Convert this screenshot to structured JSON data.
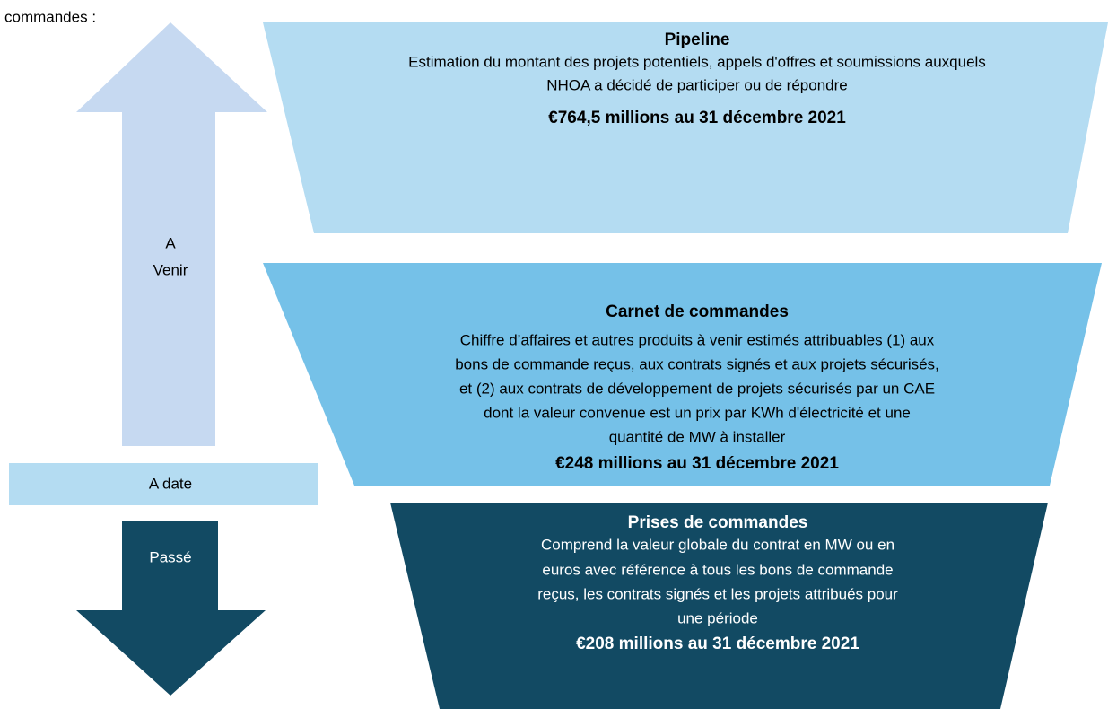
{
  "intro": "commandes :",
  "arrow_up": {
    "lines": [
      "A",
      "Venir"
    ]
  },
  "today": "A date",
  "arrow_down": "Passé",
  "sections": [
    {
      "title": "Pipeline",
      "lines": [
        "Estimation du montant des projets potentiels, appels d'offres et soumissions auxquels",
        "NHOA a décidé de participer ou de répondre"
      ],
      "value": "€764,5 millions au 31 décembre 2021"
    },
    {
      "title": "Carnet de commandes",
      "lines": [
        "Chiffre d’affaires et autres produits à venir estimés attribuables (1) aux",
        "bons de commande reçus, aux contrats signés et aux projets sécurisés,",
        "et (2) aux contrats de développement de projets sécurisés par un CAE",
        "dont la valeur convenue est un prix par KWh d'électricité et une",
        "quantité de MW à installer"
      ],
      "value": "€248 millions au 31 décembre 2021"
    },
    {
      "title": "Prises de commandes",
      "lines": [
        "Comprend la valeur globale du contrat en MW ou en",
        "euros avec référence à tous les bons de commande",
        "reçus, les contrats signés et les projets attribués pour",
        "une période"
      ],
      "value": "€208 millions au 31 décembre 2021"
    }
  ]
}
